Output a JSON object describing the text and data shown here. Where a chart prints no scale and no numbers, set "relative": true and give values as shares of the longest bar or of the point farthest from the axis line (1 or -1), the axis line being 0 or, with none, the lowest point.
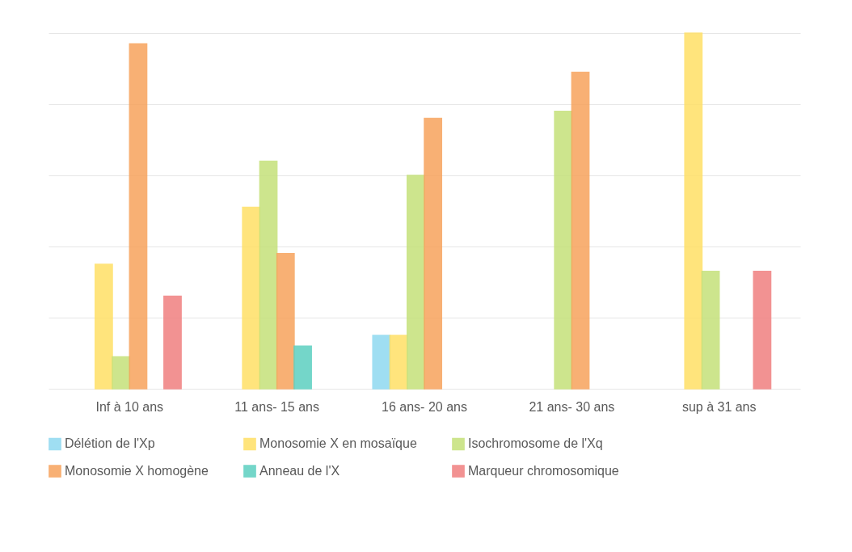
{
  "chart_data": {
    "type": "bar",
    "relative": true,
    "grid": "y",
    "legend": "bottom",
    "categories": [
      "Inf à 10 ans",
      "11 ans- 15 ans",
      "16 ans- 20 ans",
      "21 ans- 30 ans",
      "sup à 31 ans"
    ],
    "series": [
      {
        "name": "Délétion de l'Xp",
        "color": "#8fd9f0",
        "values": [
          null,
          null,
          0.15,
          null,
          null
        ]
      },
      {
        "name": "Monosomie X en mosaïque",
        "color": "#ffe066",
        "values": [
          0.35,
          0.51,
          0.15,
          null,
          1
        ]
      },
      {
        "name": "Isochromosome de l'Xq",
        "color": "#c5e17a",
        "values": [
          0.09,
          0.64,
          0.6,
          0.78,
          0.33
        ]
      },
      {
        "name": "Monosomie X homogène",
        "color": "#f7a35c",
        "values": [
          0.97,
          0.38,
          0.76,
          0.89,
          null
        ]
      },
      {
        "name": "Anneau de l'X",
        "color": "#5ccfc0",
        "values": [
          null,
          0.12,
          null,
          null,
          null
        ]
      },
      {
        "name": "Marqueur chromosomique",
        "color": "#f08080",
        "values": [
          0.26,
          null,
          null,
          null,
          0.33
        ]
      }
    ]
  }
}
